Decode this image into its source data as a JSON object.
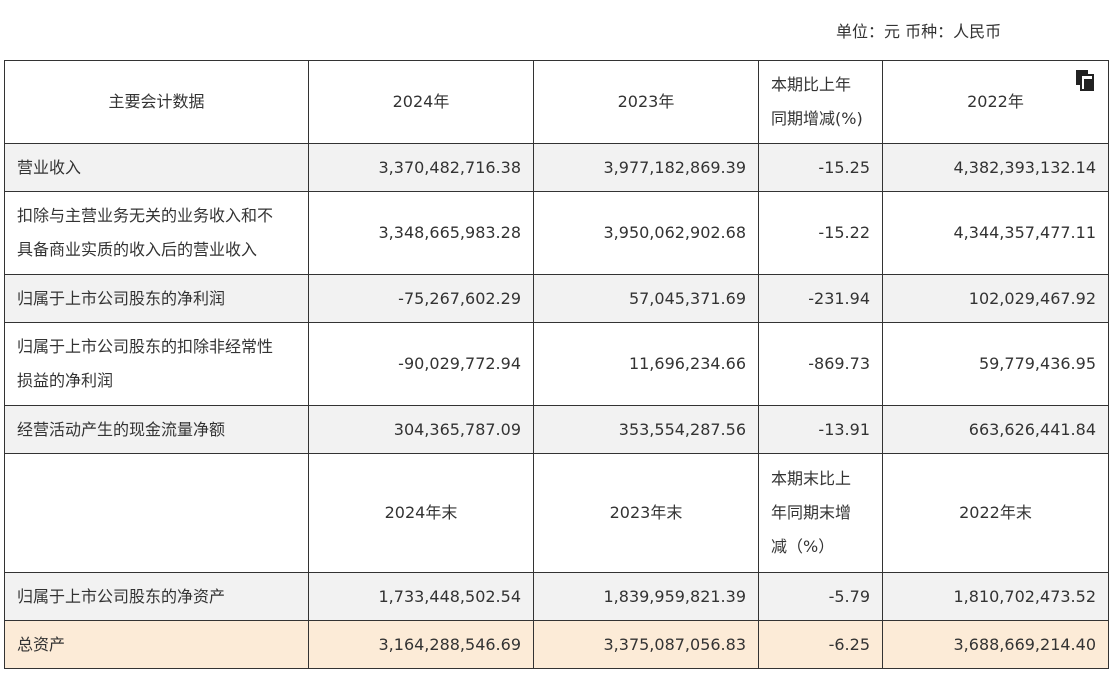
{
  "unit_line": "单位：元 币种：人民币",
  "icons": {
    "copy": "copy-icon"
  },
  "table": {
    "header1": {
      "label": "主要会计数据",
      "c1": "2024年",
      "c2": "2023年",
      "c3_line1": "本期比上年",
      "c3_line2": "同期增减(%)",
      "c4": "2022年"
    },
    "rows1": [
      {
        "label_line1": "营业收入",
        "label_line2": "",
        "v2024": "3,370,482,716.38",
        "v2023": "3,977,182,869.39",
        "change": "-15.25",
        "v2022": "4,382,393,132.14"
      },
      {
        "label_line1": "扣除与主营业务无关的业务收入和不",
        "label_line2": "具备商业实质的收入后的营业收入",
        "v2024": "3,348,665,983.28",
        "v2023": "3,950,062,902.68",
        "change": "-15.22",
        "v2022": "4,344,357,477.11"
      },
      {
        "label_line1": "归属于上市公司股东的净利润",
        "label_line2": "",
        "v2024": "-75,267,602.29",
        "v2023": "57,045,371.69",
        "change": "-231.94",
        "v2022": "102,029,467.92"
      },
      {
        "label_line1": "归属于上市公司股东的扣除非经常性",
        "label_line2": "损益的净利润",
        "v2024": "-90,029,772.94",
        "v2023": "11,696,234.66",
        "change": "-869.73",
        "v2022": "59,779,436.95"
      },
      {
        "label_line1": "经营活动产生的现金流量净额",
        "label_line2": "",
        "v2024": "304,365,787.09",
        "v2023": "353,554,287.56",
        "change": "-13.91",
        "v2022": "663,626,441.84"
      }
    ],
    "header2": {
      "label": "",
      "c1": "2024年末",
      "c2": "2023年末",
      "c3_line1": "本期末比上",
      "c3_line2": "年同期末增",
      "c3_line3": "减（%）",
      "c4": "2022年末"
    },
    "rows2": [
      {
        "label": "归属于上市公司股东的净资产",
        "v2024": "1,733,448,502.54",
        "v2023": "1,839,959,821.39",
        "change": "-5.79",
        "v2022": "1,810,702,473.52"
      },
      {
        "label": "总资产",
        "v2024": "3,164,288,546.69",
        "v2023": "3,375,087,056.83",
        "change": "-6.25",
        "v2022": "3,688,669,214.40"
      }
    ]
  }
}
